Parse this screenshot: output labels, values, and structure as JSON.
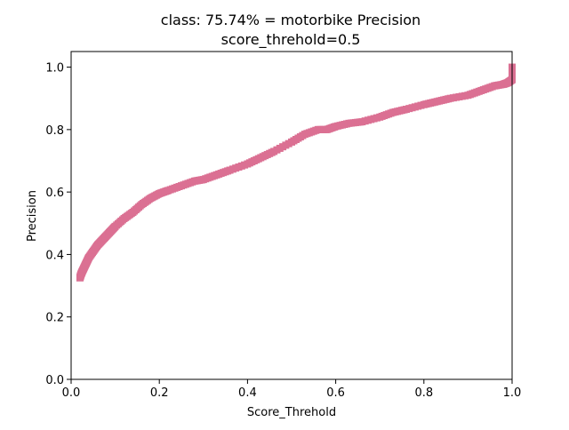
{
  "chart_data": {
    "type": "scatter",
    "title_line1": "class: 75.74% = motorbike Precision",
    "title_line2": "score_threhold=0.5",
    "xlabel": "Score_Threhold",
    "ylabel": "Precision",
    "xlim": [
      0.0,
      1.0
    ],
    "ylim": [
      0.0,
      1.05
    ],
    "xticks": [
      "0.0",
      "0.2",
      "0.4",
      "0.6",
      "0.8",
      "1.0"
    ],
    "yticks": [
      "0.0",
      "0.2",
      "0.4",
      "0.6",
      "0.8",
      "1.0"
    ],
    "grid": false,
    "marker_color": "#db7093",
    "series": [
      {
        "x": [
          0.02,
          0.022,
          0.025,
          0.03,
          0.035,
          0.04,
          0.05,
          0.06,
          0.07,
          0.08,
          0.09,
          0.1,
          0.12,
          0.14,
          0.16,
          0.18,
          0.2,
          0.22,
          0.25,
          0.28,
          0.3,
          0.33,
          0.36,
          0.4,
          0.43,
          0.46,
          0.5,
          0.53,
          0.56,
          0.58,
          0.6,
          0.63,
          0.66,
          0.7,
          0.73,
          0.76,
          0.8,
          0.83,
          0.86,
          0.9,
          0.93,
          0.96,
          0.98,
          0.99,
          1.0,
          1.0
        ],
        "y": [
          0.325,
          0.335,
          0.345,
          0.36,
          0.375,
          0.39,
          0.41,
          0.43,
          0.445,
          0.46,
          0.475,
          0.49,
          0.515,
          0.535,
          0.56,
          0.58,
          0.595,
          0.605,
          0.62,
          0.635,
          0.64,
          0.655,
          0.67,
          0.69,
          0.71,
          0.73,
          0.76,
          0.785,
          0.8,
          0.8,
          0.81,
          0.82,
          0.825,
          0.84,
          0.855,
          0.865,
          0.88,
          0.89,
          0.9,
          0.91,
          0.925,
          0.94,
          0.945,
          0.95,
          0.96,
          1.0
        ]
      }
    ]
  }
}
